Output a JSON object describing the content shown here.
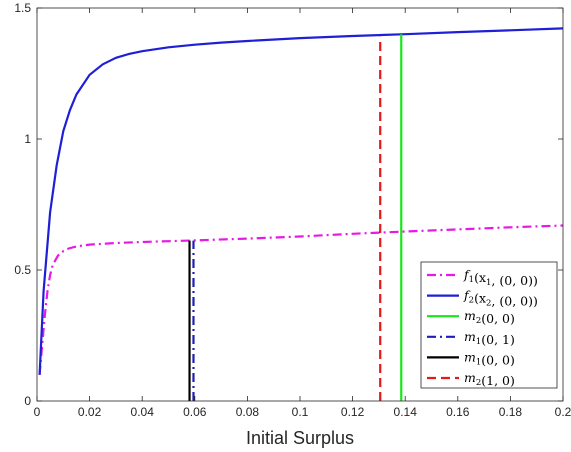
{
  "chart_data": {
    "type": "line",
    "title": "",
    "xlabel": "Initial Surplus",
    "ylabel": "",
    "xlim": [
      0,
      0.2
    ],
    "ylim": [
      0,
      1.5
    ],
    "grid": false,
    "legend_placement": "bottom-right",
    "x_ticks": [
      "0",
      "0.02",
      "0.04",
      "0.06",
      "0.08",
      "0.1",
      "0.12",
      "0.14",
      "0.16",
      "0.18",
      "0.2"
    ],
    "y_ticks": [
      "0",
      "0.5",
      "1",
      "1.5"
    ],
    "series": [
      {
        "key": "f1",
        "name": "f1(x1,(0,0))",
        "legend": [
          {
            "t": "f"
          },
          {
            "t": "1",
            "s": "sub"
          },
          {
            "t": "(x"
          },
          {
            "t": "1",
            "s": "sub"
          },
          {
            "t": ", (0, 0))"
          }
        ],
        "color": "#E619E6",
        "dash": "dashdot",
        "x": [
          0.001,
          0.002,
          0.003,
          0.004,
          0.005,
          0.006,
          0.008,
          0.01,
          0.012,
          0.015,
          0.02,
          0.03,
          0.04,
          0.05,
          0.06,
          0.08,
          0.1,
          0.12,
          0.14,
          0.16,
          0.18,
          0.2
        ],
        "y": [
          0.1,
          0.22,
          0.33,
          0.42,
          0.48,
          0.52,
          0.555,
          0.572,
          0.582,
          0.59,
          0.597,
          0.603,
          0.607,
          0.61,
          0.613,
          0.62,
          0.628,
          0.638,
          0.647,
          0.655,
          0.663,
          0.67
        ]
      },
      {
        "key": "f2",
        "name": "f2(x2,(0,0))",
        "legend": [
          {
            "t": "f"
          },
          {
            "t": "2",
            "s": "sub"
          },
          {
            "t": "(x"
          },
          {
            "t": "2",
            "s": "sub"
          },
          {
            "t": ", (0, 0))"
          }
        ],
        "color": "#1F1FD6",
        "dash": "solid",
        "x": [
          0.001,
          0.0025,
          0.005,
          0.0075,
          0.01,
          0.0125,
          0.015,
          0.02,
          0.025,
          0.03,
          0.035,
          0.04,
          0.05,
          0.06,
          0.07,
          0.08,
          0.1,
          0.12,
          0.14,
          0.16,
          0.18,
          0.2
        ],
        "y": [
          0.1,
          0.42,
          0.72,
          0.9,
          1.03,
          1.11,
          1.17,
          1.245,
          1.285,
          1.31,
          1.325,
          1.335,
          1.35,
          1.36,
          1.368,
          1.374,
          1.385,
          1.393,
          1.4,
          1.408,
          1.415,
          1.422
        ]
      }
    ],
    "vlines": [
      {
        "key": "m2_00",
        "name": "m2(0,0)",
        "legend": [
          {
            "t": "m"
          },
          {
            "t": "2",
            "s": "sub"
          },
          {
            "t": "(0, 0)"
          }
        ],
        "color": "#19E619",
        "dash": "solid",
        "x": 0.1385,
        "y": [
          0,
          1.4
        ]
      },
      {
        "key": "m1_01",
        "name": "m1(0,1)",
        "legend": [
          {
            "t": "m"
          },
          {
            "t": "1",
            "s": "sub"
          },
          {
            "t": "(0, 1)"
          }
        ],
        "color": "#1F1FB8",
        "dash": "dashdot",
        "x": 0.0595,
        "y": [
          0,
          0.612
        ]
      },
      {
        "key": "m1_00",
        "name": "m1(0,0)",
        "legend": [
          {
            "t": "m"
          },
          {
            "t": "1",
            "s": "sub"
          },
          {
            "t": "(0, 0)"
          }
        ],
        "color": "#000000",
        "dash": "solid",
        "x": 0.058,
        "y": [
          0,
          0.612
        ]
      },
      {
        "key": "m2_10",
        "name": "m2(1,0)",
        "legend": [
          {
            "t": "m"
          },
          {
            "t": "2",
            "s": "sub"
          },
          {
            "t": "(1, 0)"
          }
        ],
        "color": "#E61919",
        "dash": "dashed",
        "x": 0.1305,
        "y": [
          0,
          1.39
        ]
      }
    ]
  }
}
